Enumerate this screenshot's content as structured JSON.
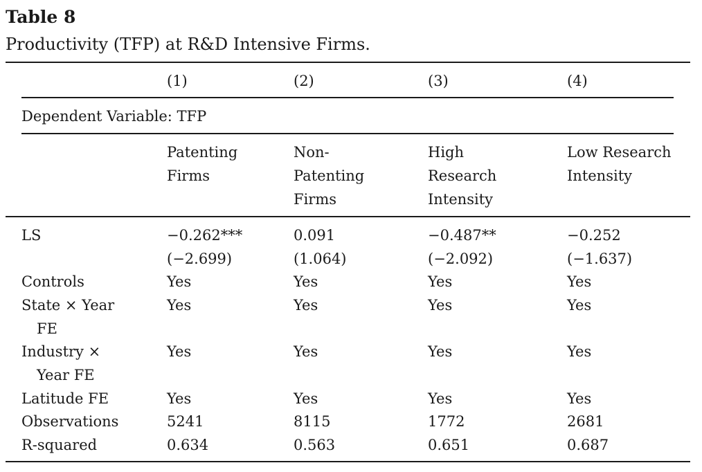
{
  "table_label": "Table 8",
  "table_title": "Productivity (TFP) at R&D Intensive Firms.",
  "column_numbers": [
    "(1)",
    "(2)",
    "(3)",
    "(4)"
  ],
  "dependent_variable": "Dependent Variable: TFP",
  "column_groups": [
    [
      "Patenting",
      "Firms"
    ],
    [
      "Non-",
      "Patenting",
      "Firms"
    ],
    [
      "High",
      "Research",
      "Intensity"
    ],
    [
      "Low Research",
      "Intensity"
    ]
  ],
  "rows": {
    "ls": {
      "label": "LS",
      "coefficients": [
        "−0.262***",
        "0.091",
        "−0.487**",
        "−0.252"
      ],
      "tstats": [
        "(−2.699)",
        "(1.064)",
        "(−2.092)",
        "(−1.637)"
      ]
    },
    "controls": {
      "label": "Controls",
      "values": [
        "Yes",
        "Yes",
        "Yes",
        "Yes"
      ]
    },
    "state_year_fe": {
      "label_line1": "State × Year",
      "label_line2": "FE",
      "values": [
        "Yes",
        "Yes",
        "Yes",
        "Yes"
      ]
    },
    "industry_year_fe": {
      "label_line1": "Industry ×",
      "label_line2": "Year FE",
      "values": [
        "Yes",
        "Yes",
        "Yes",
        "Yes"
      ]
    },
    "latitude_fe": {
      "label": "Latitude FE",
      "values": [
        "Yes",
        "Yes",
        "Yes",
        "Yes"
      ]
    },
    "observations": {
      "label": "Observations",
      "values": [
        "5241",
        "8115",
        "1772",
        "2681"
      ]
    },
    "r_squared": {
      "label": "R-squared",
      "values": [
        "0.634",
        "0.563",
        "0.651",
        "0.687"
      ]
    }
  }
}
